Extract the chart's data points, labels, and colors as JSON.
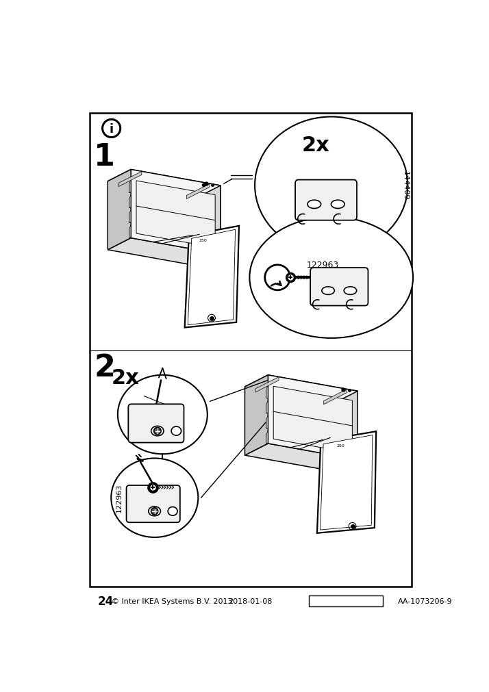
{
  "page_num": "24",
  "copyright_text": "© Inter IKEA Systems B.V. 2013",
  "date_text": "2018-01-08",
  "article_num": "AA-1073206-9",
  "bg_color": "#ffffff",
  "border_color": "#1a1a1a",
  "step1_label": "1",
  "step2_label": "2",
  "info_symbol": "i",
  "qty1_text": "2x",
  "qty2_text": "2x",
  "part1": "144409",
  "part2": "122963",
  "part3": "122963",
  "lw_main": 1.5,
  "lw_thin": 0.7,
  "lw_med": 1.1
}
